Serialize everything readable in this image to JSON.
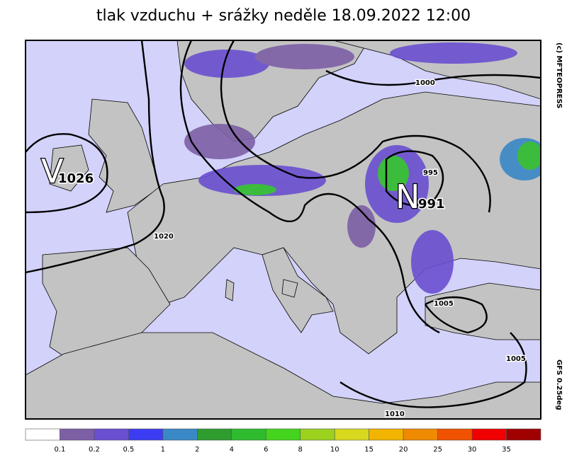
{
  "title": "tlak vzduchu + srážky  neděle 18.09.2022 12:00",
  "pressure_centers": [
    {
      "letter": "V",
      "value": "1026"
    },
    {
      "letter": "N",
      "value": "991"
    }
  ],
  "isobar_labels": [
    "1000",
    "995",
    "1020",
    "1005",
    "1005",
    "1010"
  ],
  "credit": "(c) MFTEOPRESS",
  "model": "GFS  0.25deg",
  "legend": {
    "thresholds": [
      0.1,
      0.2,
      0.5,
      1,
      2,
      4,
      6,
      8,
      10,
      15,
      20,
      25,
      30,
      35
    ],
    "colors": [
      "#ffffff",
      "#7d5fa6",
      "#6a4fd0",
      "#3c3cf2",
      "#3a88c6",
      "#2e9c2e",
      "#2ebc2e",
      "#44d41e",
      "#9ad21e",
      "#d8d81e",
      "#f2b400",
      "#f08a00",
      "#f05200",
      "#f00000",
      "#a00000"
    ]
  }
}
